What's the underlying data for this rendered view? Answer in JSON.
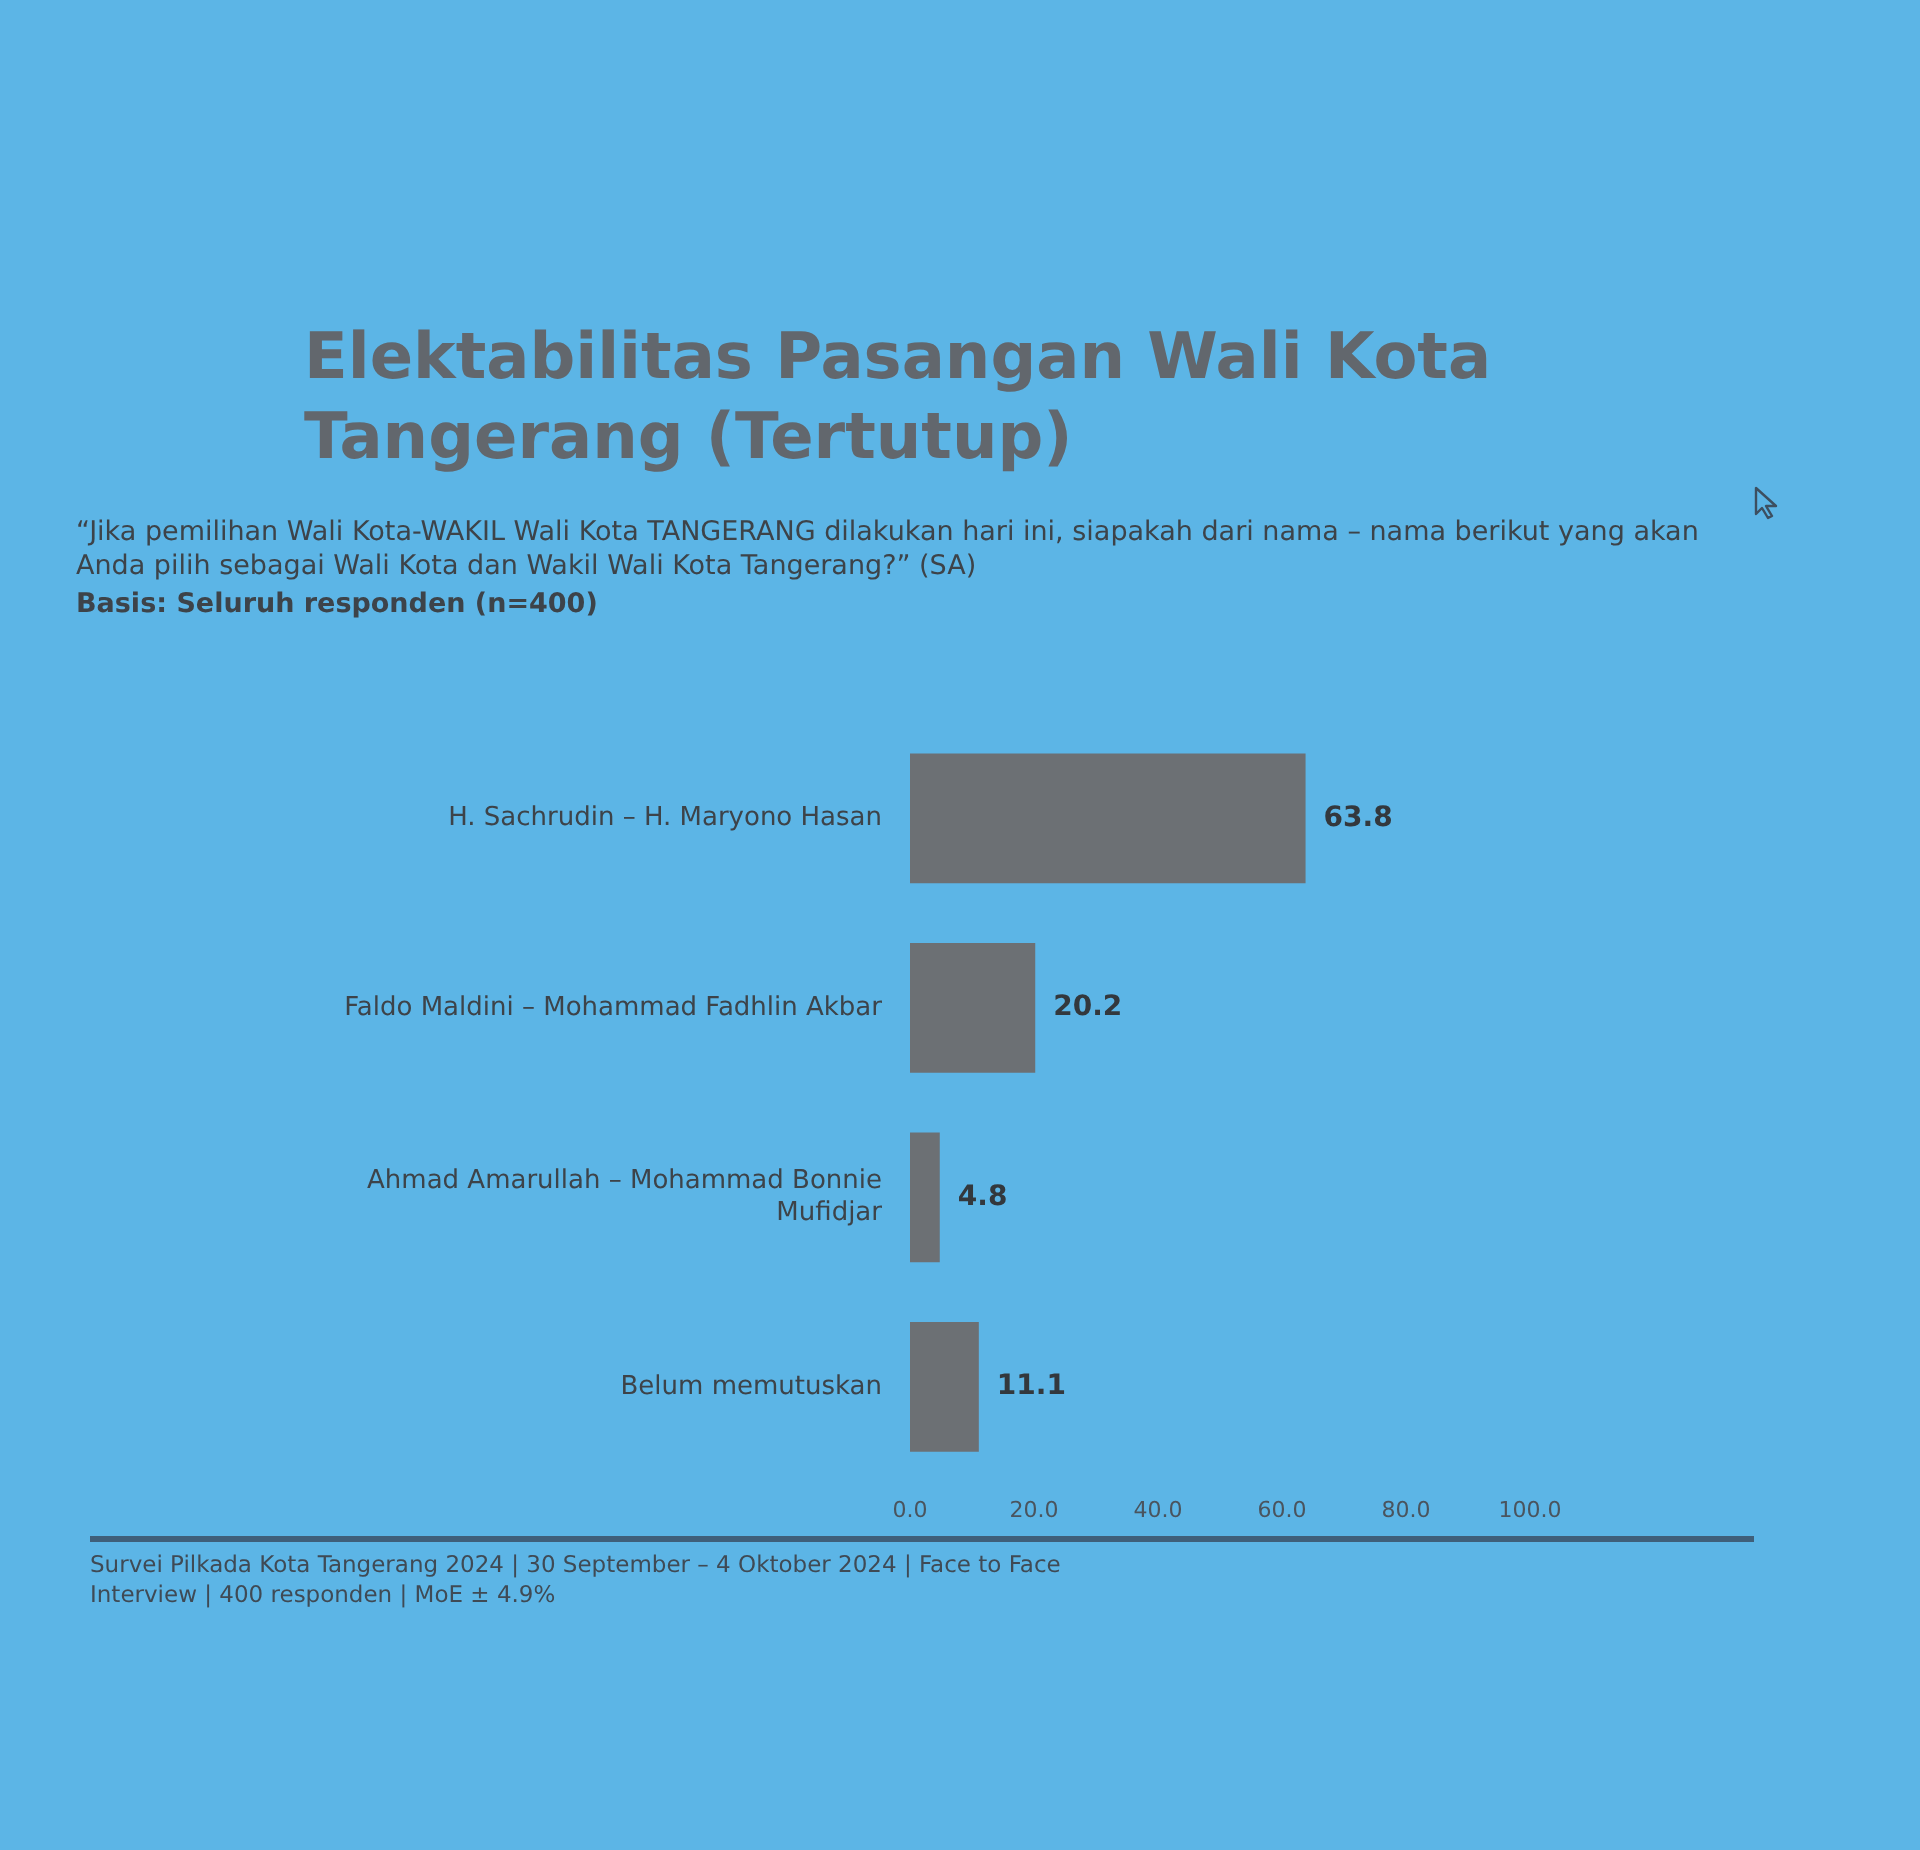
{
  "chart_data": {
    "type": "bar",
    "orientation": "horizontal",
    "title": "Elektabilitas Pasangan Wali Kota Tangerang (Tertutup)",
    "subtitle": "“Jika pemilihan Wali Kota-WAKIL Wali Kota TANGERANG dilakukan hari ini, siapakah dari nama – nama berikut yang akan Anda pilih sebagai Wali Kota dan Wakil Wali Kota Tangerang?” (SA)",
    "categories": [
      "H. Sachrudin – H. Maryono Hasan",
      "Faldo Maldini – Mohammad Fadhlin Akbar",
      "Ahmad Amarullah – Mohammad Bonnie Mufidjar",
      "Belum memutuskan"
    ],
    "values": [
      63.8,
      20.2,
      4.8,
      11.1
    ],
    "color": "#6c7074",
    "data_labels": true,
    "grid": false,
    "xlim": [
      0,
      100
    ],
    "xticks": [
      {
        "value": 0,
        "label": "0.0"
      },
      {
        "value": 20,
        "label": "20.0"
      },
      {
        "value": 40,
        "label": "40.0"
      },
      {
        "value": 60,
        "label": "60.0"
      },
      {
        "value": 80,
        "label": "80.0"
      },
      {
        "value": 100,
        "label": "100.0"
      }
    ],
    "annotations": [
      "Basis: Seluruh responden (n=400)",
      "Survei Pilkada Kota Tangerang 2024 | 30 September – 4 Oktober 2024 | Face to Face Interview | 400 responden | MoE ± 4.9%"
    ]
  }
}
